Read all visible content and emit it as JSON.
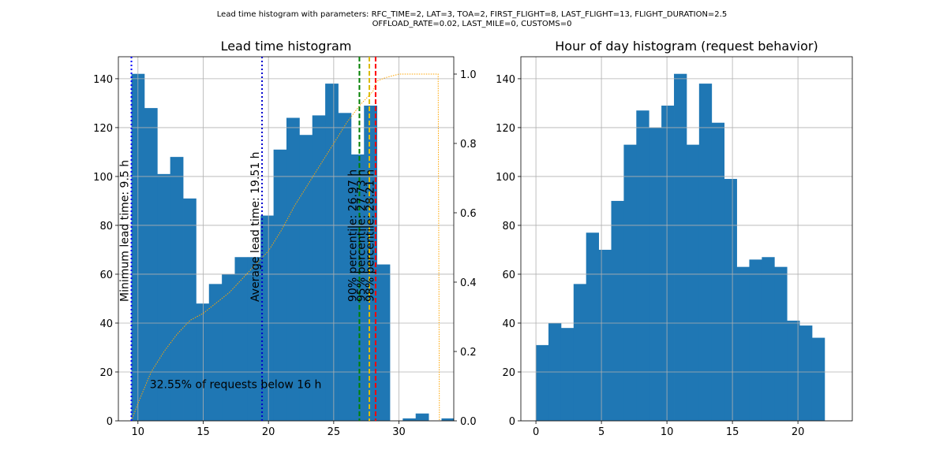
{
  "suptitle": {
    "line1": "Lead time histogram with parameters: RFC_TIME=2, LAT=3, TOA=2, FIRST_FLIGHT=8, LAST_FLIGHT=13, FLIGHT_DURATION=2.5",
    "line2": "OFFLOAD_RATE=0.02, LAST_MILE=0, CUSTOMS=0"
  },
  "colors": {
    "bar": "#1f77b4",
    "grid": "#b0b0b0",
    "cumulative": "#ffa500",
    "min_line": "#0000ff",
    "avg_line": "#0000cc",
    "p90": "#008000",
    "p95": "#ddbb00",
    "p98": "#ff0000"
  },
  "chart_data": [
    {
      "type": "bar",
      "title": "Lead time histogram",
      "xlabel": "",
      "ylabel": "",
      "xlim": [
        8.5,
        34.2
      ],
      "ylim": [
        0,
        149
      ],
      "y2lim": [
        0,
        1.05
      ],
      "xticks": [
        10,
        15,
        20,
        25,
        30
      ],
      "yticks": [
        0,
        20,
        40,
        60,
        80,
        100,
        120,
        140
      ],
      "y2ticks": [
        0.0,
        0.2,
        0.4,
        0.6,
        0.8,
        1.0
      ],
      "grid": true,
      "bin_start": 9.5,
      "bin_width": 0.99,
      "values": [
        142,
        128,
        101,
        108,
        91,
        48,
        56,
        60,
        67,
        67,
        84,
        111,
        124,
        117,
        125,
        138,
        126,
        109,
        129,
        64,
        0,
        1,
        3,
        0,
        1
      ],
      "cumulative": {
        "name": "cumulative share",
        "x": [
          9.5,
          10,
          11,
          12,
          13,
          14,
          15,
          16,
          17,
          18,
          19,
          20,
          21,
          22,
          23,
          24,
          25,
          26,
          27,
          28,
          28.3,
          29,
          30,
          31,
          32,
          33,
          33.1
        ],
        "y": [
          0.0,
          0.05,
          0.14,
          0.2,
          0.25,
          0.29,
          0.31,
          0.34,
          0.37,
          0.41,
          0.45,
          0.49,
          0.55,
          0.62,
          0.68,
          0.74,
          0.8,
          0.86,
          0.91,
          0.95,
          0.98,
          0.99,
          1.0,
          1.0,
          1.0,
          1.0,
          0.0
        ]
      },
      "vlines": [
        {
          "x": 9.5,
          "label": "Minimum lead time: 9.5 h",
          "style": "dotted",
          "color_key": "min_line"
        },
        {
          "x": 19.51,
          "label": "Average lead time: 19.51 h",
          "style": "dotted",
          "color_key": "avg_line"
        },
        {
          "x": 26.97,
          "label": "90% percentile: 26.97 h",
          "style": "dashed",
          "color_key": "p90"
        },
        {
          "x": 27.73,
          "label": "95% percentile: 27.73 h",
          "style": "dashed",
          "color_key": "p95"
        },
        {
          "x": 28.21,
          "label": "98% percentile: 28.21 h",
          "style": "dashed",
          "color_key": "p98"
        }
      ],
      "annotation": {
        "text": "32.55% of requests below 16 h",
        "x": 10.9,
        "y": 15
      }
    },
    {
      "type": "bar",
      "title": "Hour of day histogram (request behavior)",
      "xlabel": "",
      "ylabel": "",
      "xlim": [
        -1.15,
        24.15
      ],
      "ylim": [
        0,
        149
      ],
      "xticks": [
        0,
        5,
        10,
        15,
        20
      ],
      "yticks": [
        0,
        20,
        40,
        60,
        80,
        100,
        120,
        140
      ],
      "grid": true,
      "bin_start": 0,
      "bin_width": 0.958,
      "values": [
        31,
        40,
        38,
        56,
        77,
        70,
        90,
        113,
        127,
        120,
        129,
        142,
        113,
        138,
        122,
        99,
        63,
        66,
        67,
        63,
        41,
        39,
        34
      ]
    }
  ]
}
